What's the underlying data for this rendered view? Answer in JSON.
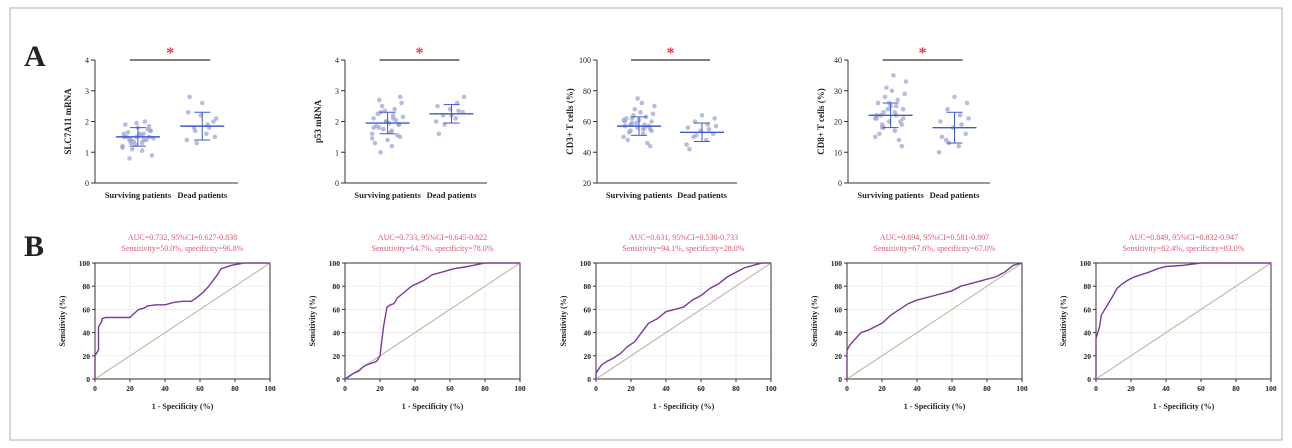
{
  "figure": {
    "panel_a_label": "A",
    "panel_b_label": "B",
    "colors": {
      "frame": "#bdbdbd",
      "point": "#9aa0cf",
      "mean": "#3e5ad0",
      "sig": "#e8324a",
      "roc": "#7a3a9a",
      "diag": "#c9b9a6",
      "auc_text": "#e0566e",
      "grid": "#e6e6e6"
    }
  },
  "chart_data": [
    {
      "type": "scatter",
      "panel": "A",
      "ylabel": "SLC7A11 mRNA",
      "categories": [
        "Surviving patients",
        "Dead patients"
      ],
      "ylim": [
        0,
        4
      ],
      "yticks": [
        0,
        1,
        2,
        3,
        4
      ],
      "significance": "*",
      "series": [
        {
          "values": [
            1.2,
            1.3,
            1.4,
            1.5,
            1.5,
            1.6,
            1.4,
            1.3,
            1.7,
            1.8,
            1.9,
            2.0,
            1.1,
            0.9,
            1.6,
            1.5,
            1.4,
            1.35,
            1.45,
            1.55,
            1.65,
            1.75,
            1.25,
            1.15,
            1.05,
            0.8,
            1.85,
            1.95,
            1.5,
            1.6,
            1.4,
            1.7
          ],
          "mean": 1.5,
          "sd": 0.3
        },
        {
          "values": [
            1.4,
            1.6,
            1.8,
            2.0,
            2.2,
            2.3,
            1.9,
            1.7,
            1.5,
            2.6,
            2.8,
            1.8,
            1.3,
            2.1
          ],
          "mean": 1.85,
          "sd": 0.45
        }
      ]
    },
    {
      "type": "scatter",
      "panel": "A",
      "ylabel": "p53 mRNA",
      "categories": [
        "Surviving patients",
        "Dead patients"
      ],
      "ylim": [
        0,
        4
      ],
      "yticks": [
        0,
        1,
        2,
        3,
        4
      ],
      "significance": "*",
      "series": [
        {
          "values": [
            1.6,
            1.7,
            1.8,
            1.9,
            2.0,
            2.1,
            2.2,
            2.3,
            1.5,
            1.4,
            1.3,
            2.4,
            2.5,
            2.6,
            1.95,
            1.85,
            2.05,
            1.75,
            2.15,
            1.65,
            2.25,
            1.55,
            2.35,
            1.45,
            1.2,
            2.7,
            1.9,
            2.0,
            1.8,
            2.1,
            1.0,
            2.8
          ],
          "mean": 1.95,
          "sd": 0.35
        },
        {
          "values": [
            2.0,
            2.1,
            2.2,
            2.3,
            2.4,
            2.5,
            2.6,
            1.9,
            2.8,
            2.2,
            1.6,
            2.35
          ],
          "mean": 2.25,
          "sd": 0.3
        }
      ]
    },
    {
      "type": "scatter",
      "panel": "A",
      "ylabel": "CD3+ T cells (%)",
      "categories": [
        "Surviving patients",
        "Dead patients"
      ],
      "ylim": [
        20,
        100
      ],
      "yticks": [
        20,
        40,
        60,
        80,
        100
      ],
      "significance": "*",
      "series": [
        {
          "values": [
            50,
            52,
            54,
            55,
            56,
            57,
            58,
            59,
            60,
            61,
            62,
            63,
            64,
            65,
            66,
            48,
            46,
            68,
            70,
            72,
            53,
            57,
            59,
            61,
            55,
            58,
            44,
            75,
            60,
            56,
            62,
            54
          ],
          "mean": 57,
          "sd": 6
        },
        {
          "values": [
            45,
            48,
            50,
            52,
            54,
            56,
            58,
            60,
            62,
            64,
            42,
            55,
            51,
            57
          ],
          "mean": 53,
          "sd": 6
        }
      ]
    },
    {
      "type": "scatter",
      "panel": "A",
      "ylabel": "CD8+ T cells (%)",
      "categories": [
        "Surviving patients",
        "Dead patients"
      ],
      "ylim": [
        0,
        40
      ],
      "yticks": [
        0,
        10,
        20,
        30,
        40
      ],
      "significance": "*",
      "series": [
        {
          "values": [
            15,
            17,
            18,
            19,
            20,
            21,
            22,
            23,
            24,
            25,
            26,
            27,
            28,
            29,
            30,
            16,
            14,
            31,
            33,
            35,
            22,
            20,
            24,
            21,
            23,
            19,
            12,
            26,
            22,
            25,
            18,
            21
          ],
          "mean": 22,
          "sd": 4
        },
        {
          "values": [
            10,
            12,
            14,
            16,
            18,
            20,
            22,
            24,
            26,
            28,
            15,
            19,
            13,
            21
          ],
          "mean": 18,
          "sd": 5
        }
      ]
    },
    {
      "type": "line",
      "panel": "B",
      "title": "AUC=0.732, 95%CI=0.627-0.838",
      "subtitle": "Sensitivity=50.0%, specificity=96.8%",
      "xlabel": "1 - Specificity (%)",
      "ylabel": "Sensitivity (%)",
      "xlim": [
        0,
        100
      ],
      "ylim": [
        0,
        100
      ],
      "ticks": [
        0,
        20,
        40,
        60,
        80,
        100
      ],
      "grid": true,
      "x": [
        0,
        0,
        2,
        2,
        4,
        4,
        6,
        6,
        20,
        22,
        25,
        28,
        30,
        35,
        40,
        45,
        50,
        55,
        58,
        62,
        65,
        70,
        72,
        78,
        85,
        100
      ],
      "y": [
        0,
        20,
        25,
        45,
        50,
        52,
        53,
        53,
        53,
        56,
        60,
        61,
        63,
        64,
        64,
        66,
        67,
        67,
        70,
        75,
        80,
        90,
        95,
        98,
        100,
        100
      ]
    },
    {
      "type": "line",
      "panel": "B",
      "title": "AUC=0.733, 95%CI=0.645-0.822",
      "subtitle": "Sensitivity=64.7%, specificity=78.0%",
      "xlabel": "1 - Specificity (%)",
      "ylabel": "Sensitivity (%)",
      "xlim": [
        0,
        100
      ],
      "ylim": [
        0,
        100
      ],
      "ticks": [
        0,
        20,
        40,
        60,
        80,
        100
      ],
      "grid": true,
      "x": [
        0,
        3,
        5,
        8,
        10,
        12,
        18,
        20,
        22,
        24,
        26,
        28,
        30,
        34,
        38,
        45,
        50,
        55,
        62,
        70,
        80,
        90,
        100
      ],
      "y": [
        0,
        3,
        5,
        7,
        10,
        12,
        15,
        20,
        45,
        62,
        64,
        65,
        70,
        75,
        80,
        85,
        90,
        92,
        95,
        97,
        100,
        100,
        100
      ]
    },
    {
      "type": "line",
      "panel": "B",
      "title": "AUC=0.631, 95%CI=0.530-0.733",
      "subtitle": "Sensitivity=94.1%, specificity=28.0%",
      "xlabel": "1 - Specificity (%)",
      "ylabel": "Sensitivity (%)",
      "xlim": [
        0,
        100
      ],
      "ylim": [
        0,
        100
      ],
      "ticks": [
        0,
        20,
        40,
        60,
        80,
        100
      ],
      "grid": true,
      "x": [
        0,
        0,
        3,
        6,
        10,
        14,
        18,
        22,
        26,
        30,
        35,
        40,
        45,
        50,
        55,
        60,
        65,
        70,
        75,
        80,
        85,
        90,
        95,
        100
      ],
      "y": [
        0,
        5,
        12,
        15,
        18,
        22,
        28,
        32,
        40,
        48,
        52,
        58,
        60,
        62,
        68,
        72,
        78,
        82,
        88,
        92,
        96,
        98,
        100,
        100
      ]
    },
    {
      "type": "line",
      "panel": "B",
      "title": "AUC=0.694, 95%CI=0.581-0.807",
      "subtitle": "Sensitivity=67.6%, specificity=67.0%",
      "xlabel": "1 - Specificity (%)",
      "ylabel": "Sensitivity (%)",
      "xlim": [
        0,
        100
      ],
      "ylim": [
        0,
        100
      ],
      "ticks": [
        0,
        20,
        40,
        60,
        80,
        100
      ],
      "grid": true,
      "x": [
        0,
        0,
        2,
        5,
        8,
        12,
        16,
        20,
        25,
        30,
        35,
        40,
        45,
        50,
        55,
        60,
        65,
        70,
        75,
        80,
        85,
        90,
        95,
        100
      ],
      "y": [
        0,
        25,
        30,
        35,
        40,
        42,
        45,
        48,
        55,
        60,
        65,
        68,
        70,
        72,
        74,
        76,
        80,
        82,
        84,
        86,
        88,
        92,
        98,
        100
      ]
    },
    {
      "type": "line",
      "panel": "B",
      "title": "AUC=0.849, 95%CI=0.832-0.947",
      "subtitle": "Sensitivity=82.4%, specificity=83.0%",
      "xlabel": "1 - Specificity (%)",
      "ylabel": "Sensitivity (%)",
      "xlim": [
        0,
        100
      ],
      "ylim": [
        0,
        100
      ],
      "ticks": [
        0,
        20,
        40,
        60,
        80,
        100
      ],
      "grid": true,
      "x": [
        0,
        0,
        2,
        3,
        5,
        7,
        9,
        12,
        15,
        18,
        22,
        26,
        30,
        35,
        40,
        50,
        60,
        70,
        100
      ],
      "y": [
        0,
        35,
        45,
        55,
        60,
        65,
        70,
        78,
        82,
        85,
        88,
        90,
        92,
        95,
        97,
        98,
        100,
        100,
        100
      ]
    }
  ]
}
